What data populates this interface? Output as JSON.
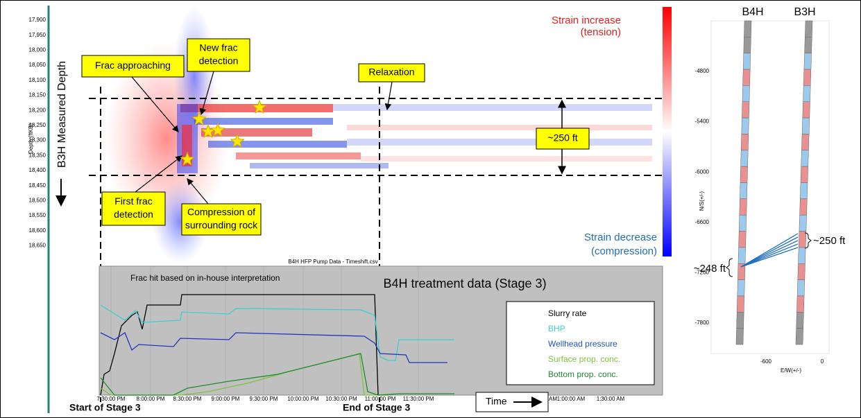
{
  "heatmap": {
    "depth_ticks": [
      "17,900",
      "17,950",
      "18,000",
      "18,050",
      "18,100",
      "18,150",
      "18,200",
      "18,250",
      "18,300",
      "18,350",
      "18,400",
      "18,450",
      "18,500",
      "18,550",
      "18,600",
      "18,650"
    ],
    "depth_axis_label": "Depth (ftKB)",
    "axis_title": "B3H Measured Depth",
    "increase": [
      "Strain increase",
      "(tension)"
    ],
    "decrease": [
      "Strain decrease",
      "(compression)"
    ],
    "callouts": [
      {
        "lines": [
          "Frac approaching"
        ]
      },
      {
        "lines": [
          "New frac",
          "detection"
        ]
      },
      {
        "lines": [
          "Relaxation"
        ]
      },
      {
        "lines": [
          "First frac",
          "detection"
        ]
      },
      {
        "lines": [
          "Compression of",
          "surrounding rock"
        ]
      },
      {
        "lines": [
          "~250 ft"
        ]
      }
    ]
  },
  "treatment": {
    "file": "B4H HFP Pump Data - Timeshift.csv",
    "title": "B4H treatment data (Stage 3)",
    "star_note": "Frac hit based on in-house interpretation",
    "legend": [
      "Slurry rate",
      "BHP",
      "Wellhead pressure",
      "Surface prop. conc.",
      "Bottom prop. conc."
    ],
    "time_ticks": [
      "7:30:00 PM",
      "8:00:00 PM",
      "8:30:00 PM",
      "9:00:00 PM",
      "9:30:00 PM",
      "10:00:00 PM",
      "10:30:00 PM",
      "11:00:00 PM",
      "11:30:00 PM",
      "AM",
      "1:00:00 AM",
      "1:30:00 AM"
    ],
    "time_label": "Time",
    "start": "Start of Stage 3",
    "end": "End of Stage 3"
  },
  "wells": {
    "names": [
      "B4H",
      "B3H"
    ],
    "ns_ticks": [
      "-4800",
      "-5400",
      "-6000",
      "-6600",
      "-7200",
      "-7800"
    ],
    "ns_label": "N/S(+/-)",
    "ew_ticks": [
      "-600",
      "0"
    ],
    "ew_label": "E/W(+/-)",
    "b4h_spacing": "~248 ft",
    "b3h_spacing": "~250 ft"
  }
}
